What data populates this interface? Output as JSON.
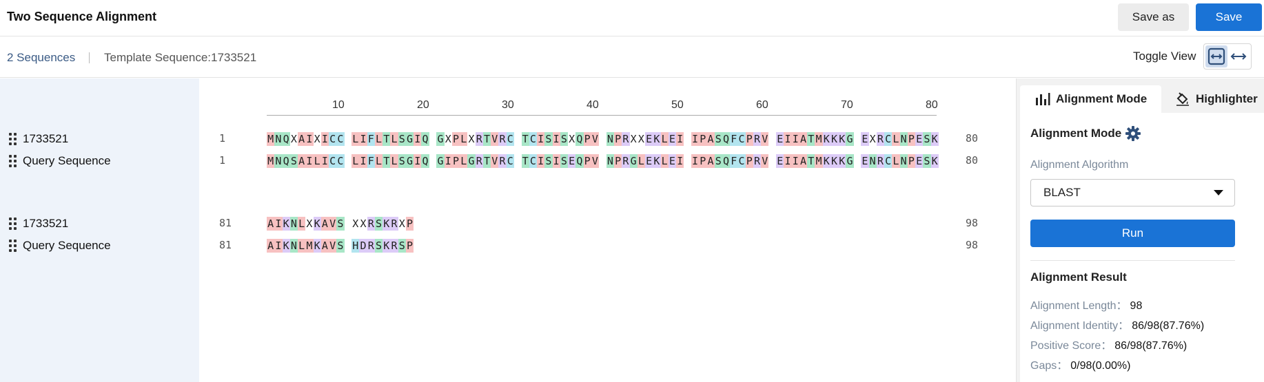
{
  "header": {
    "title": "Two Sequence Alignment",
    "save_as_label": "Save as",
    "save_label": "Save"
  },
  "subheader": {
    "sequence_count": "2 Sequences",
    "template_sequence": "Template Sequence:1733521",
    "toggle_view_label": "Toggle View"
  },
  "ruler": {
    "ticks": [
      "10",
      "20",
      "30",
      "40",
      "50",
      "60",
      "70",
      "80"
    ]
  },
  "blocks": [
    {
      "rows": [
        {
          "name": "1733521",
          "start": "1",
          "end": "80",
          "sequence": "MNQXAIXICCLIFLTLSGIQGXPLXRTVRCTCISISXQPVNPRXXEKLEIIPASQFCPRVEIIATMKKKGEXRCLNPESK"
        },
        {
          "name": "Query Sequence",
          "start": "1",
          "end": "80",
          "sequence": "MNQSAILICCLIFLTLSGIQGIPLGRTVRCTCISISEQPVNPRGLEKLEIIPASQFCPRVEIIATMKKKGENRCLNPESK"
        }
      ]
    },
    {
      "rows": [
        {
          "name": "1733521",
          "start": "81",
          "end": "98",
          "sequence": "AIKNLXKAVSXXRSKRXP"
        },
        {
          "name": "Query Sequence",
          "start": "81",
          "end": "98",
          "sequence": "AIKNLMKAVSHDRSKRSP"
        }
      ]
    }
  ],
  "residue_colors": {
    "hydrophobic": "#f7c1c1",
    "polar": "#a8e6c7",
    "cysteine_aromatic": "#b2e4ef",
    "charged": "#dccbf7"
  },
  "panel": {
    "tabs": [
      {
        "label": "Alignment Mode",
        "icon": "bar-chart-icon"
      },
      {
        "label": "Highlighter",
        "icon": "paint-bucket-icon"
      }
    ],
    "mode_title": "Alignment Mode",
    "algorithm_label": "Alignment Algorithm",
    "algorithm_value": "BLAST",
    "run_label": "Run",
    "result_title": "Alignment Result",
    "results": [
      {
        "key": "Alignment Length：",
        "value": "98"
      },
      {
        "key": "Alignment Identity：",
        "value": "86/98(87.76%)"
      },
      {
        "key": "Positive Score：",
        "value": "86/98(87.76%)"
      },
      {
        "key": "Gaps：",
        "value": "0/98(0.00%)"
      }
    ]
  },
  "colors": {
    "accent": "#1a73d6",
    "name_column_bg": "#eef3fa"
  }
}
